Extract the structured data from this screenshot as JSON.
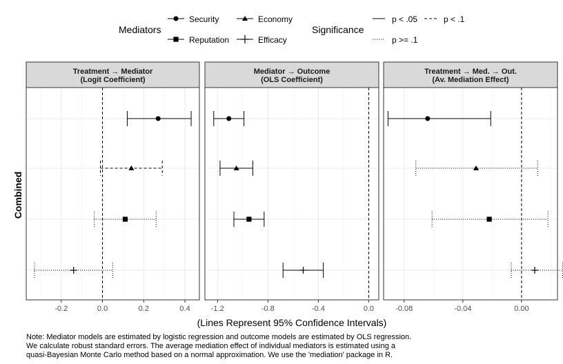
{
  "legend": {
    "mediators_title": "Mediators",
    "mediators": [
      {
        "name": "Security",
        "shape": "circle"
      },
      {
        "name": "Economy",
        "shape": "triangle"
      },
      {
        "name": "Reputation",
        "shape": "square"
      },
      {
        "name": "Efficacy",
        "shape": "plus"
      }
    ],
    "significance_title": "Significance",
    "significance": [
      {
        "name": "p < .05",
        "dash": "solid"
      },
      {
        "name": "p < .1",
        "dash": "dashed"
      },
      {
        "name": "p >= .1",
        "dash": "dotted"
      }
    ]
  },
  "chart_data": [
    {
      "type": "coefficient-plot",
      "title": "Treatment → Mediator\n(Logit Coefficient)",
      "ylabel": "Combined",
      "xlim": [
        -0.37,
        0.47
      ],
      "ticks": [
        -0.2,
        0.0,
        0.2,
        0.4
      ],
      "tick_labels": [
        "-0.2",
        "0.0",
        "0.2",
        "0.4"
      ],
      "reference_line": 0,
      "points": [
        {
          "mediator": "Security",
          "estimate": 0.27,
          "low": 0.12,
          "high": 0.43,
          "significance": "p < .05"
        },
        {
          "mediator": "Economy",
          "estimate": 0.14,
          "low": -0.01,
          "high": 0.29,
          "significance": "p < .1"
        },
        {
          "mediator": "Reputation",
          "estimate": 0.11,
          "low": -0.04,
          "high": 0.26,
          "significance": "p >= .1"
        },
        {
          "mediator": "Efficacy",
          "estimate": -0.14,
          "low": -0.33,
          "high": 0.05,
          "significance": "p >= .1"
        }
      ]
    },
    {
      "type": "coefficient-plot",
      "title": "Mediator → Outcome\n(OLS Coefficient)",
      "xlim": [
        -1.3,
        0.08
      ],
      "ticks": [
        -1.2,
        -0.8,
        -0.4,
        0.0
      ],
      "tick_labels": [
        "-1.2",
        "-0.8",
        "-0.4",
        "0.0"
      ],
      "reference_line": 0,
      "points": [
        {
          "mediator": "Security",
          "estimate": -1.11,
          "low": -1.23,
          "high": -0.99,
          "significance": "p < .05"
        },
        {
          "mediator": "Economy",
          "estimate": -1.05,
          "low": -1.18,
          "high": -0.92,
          "significance": "p < .05"
        },
        {
          "mediator": "Reputation",
          "estimate": -0.95,
          "low": -1.07,
          "high": -0.83,
          "significance": "p < .05"
        },
        {
          "mediator": "Efficacy",
          "estimate": -0.52,
          "low": -0.68,
          "high": -0.36,
          "significance": "p < .05"
        }
      ]
    },
    {
      "type": "coefficient-plot",
      "title": "Treatment → Med. → Out.\n(Av. Mediation Effect)",
      "xlim": [
        -0.094,
        0.0245
      ],
      "ticks": [
        -0.08,
        -0.04,
        0.0
      ],
      "tick_labels": [
        "-0.08",
        "-0.04",
        "0.00"
      ],
      "reference_line": 0,
      "points": [
        {
          "mediator": "Security",
          "estimate": -0.064,
          "low": -0.091,
          "high": -0.021,
          "significance": "p < .05"
        },
        {
          "mediator": "Economy",
          "estimate": -0.031,
          "low": -0.072,
          "high": 0.011,
          "significance": "p >= .1"
        },
        {
          "mediator": "Reputation",
          "estimate": -0.022,
          "low": -0.061,
          "high": 0.018,
          "significance": "p >= .1"
        },
        {
          "mediator": "Efficacy",
          "estimate": 0.009,
          "low": -0.007,
          "high": 0.028,
          "significance": "p >= .1"
        }
      ]
    }
  ],
  "xlabel": "(Lines Represent 95% Confidence Intervals)",
  "note": [
    "Note: Mediator models are estimated by logistic regression and outcome models are estimated by OLS regression.",
    "We calculate robust standard errors. The average mediation effect of individual mediators is estimated using a",
    "quasi-Bayesian Monte Carlo method based on a normal approximation. We use the 'mediation' package in R."
  ]
}
